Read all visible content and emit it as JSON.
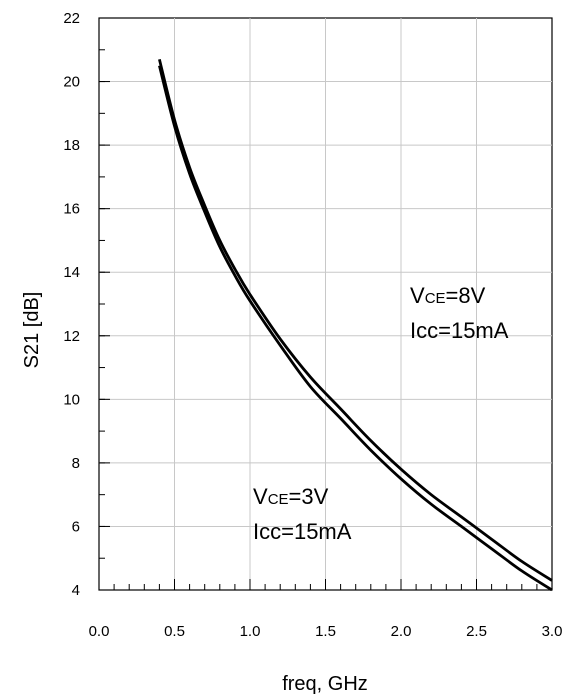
{
  "chart_data": {
    "type": "line",
    "title": "",
    "xlabel": "freq, GHz",
    "ylabel": "S21 [dB]",
    "xlim": [
      0.0,
      3.0
    ],
    "ylim": [
      4,
      22
    ],
    "x_ticks": [
      "0.0",
      "0.5",
      "1.0",
      "1.5",
      "2.0",
      "2.5",
      "3.0"
    ],
    "y_ticks": [
      "4",
      "6",
      "8",
      "10",
      "12",
      "14",
      "16",
      "18",
      "20",
      "22"
    ],
    "grid": true,
    "annotations": [
      {
        "id": "vce8",
        "line1_prefix": "V",
        "line1_sub": "CE",
        "line1_suffix": "=8V",
        "line2": "Icc=15mA"
      },
      {
        "id": "vce3",
        "line1_prefix": "V",
        "line1_sub": "CE",
        "line1_suffix": "=3V",
        "line2": "Icc=15mA"
      }
    ],
    "series": [
      {
        "x": [
          0.4,
          0.5,
          0.6,
          0.7,
          0.8,
          0.9,
          1.0,
          1.2,
          1.4,
          1.6,
          1.8,
          2.0,
          2.2,
          2.4,
          2.6,
          2.8,
          3.0
        ],
        "values": [
          20.7,
          18.8,
          17.3,
          16.1,
          15.0,
          14.1,
          13.3,
          11.9,
          10.7,
          9.7,
          8.7,
          7.8,
          7.0,
          6.3,
          5.6,
          4.9,
          4.3
        ]
      },
      {
        "x": [
          0.4,
          0.5,
          0.6,
          0.7,
          0.8,
          0.9,
          1.0,
          1.2,
          1.4,
          1.6,
          1.8,
          2.0,
          2.2,
          2.4,
          2.6,
          2.8,
          3.0
        ],
        "values": [
          20.5,
          18.6,
          17.1,
          15.9,
          14.8,
          13.9,
          13.1,
          11.7,
          10.4,
          9.4,
          8.4,
          7.5,
          6.7,
          6.0,
          5.3,
          4.6,
          4.0
        ]
      }
    ]
  }
}
